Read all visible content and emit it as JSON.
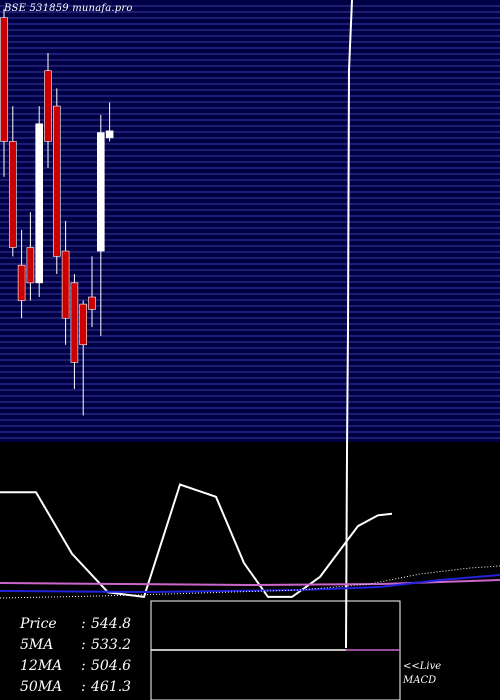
{
  "header": {
    "title": "BSE 531859 munafa.pro"
  },
  "stats": [
    {
      "label": "Price",
      "value": "544.8"
    },
    {
      "label": "5MA",
      "value": "533.2"
    },
    {
      "label": "12MA",
      "value": "504.6"
    },
    {
      "label": "50MA",
      "value": "461.3"
    }
  ],
  "footer": {
    "live_label": "<<Live",
    "macd_label": "MACD"
  },
  "colors": {
    "background": "#000000",
    "price_panel_bg": "#000044",
    "gridline": "#3a3aa0",
    "bull": "#ffffff",
    "bear": "#cc0000",
    "line": "#ffffff",
    "ma_magenta": "#cc66cc",
    "ma_blue": "#2222dd"
  },
  "chart_data": [
    {
      "type": "candlestick",
      "title": "BSE 531859 munafa.pro",
      "ylim": [
        400,
        650
      ],
      "grid": true,
      "candles": [
        {
          "open": 640,
          "high": 645,
          "low": 550,
          "close": 570
        },
        {
          "open": 570,
          "high": 590,
          "low": 505,
          "close": 510
        },
        {
          "open": 500,
          "high": 520,
          "low": 470,
          "close": 480
        },
        {
          "open": 510,
          "high": 530,
          "low": 480,
          "close": 490
        },
        {
          "open": 490,
          "high": 590,
          "low": 482,
          "close": 580
        },
        {
          "open": 610,
          "high": 620,
          "low": 555,
          "close": 570
        },
        {
          "open": 590,
          "high": 600,
          "low": 495,
          "close": 505
        },
        {
          "open": 508,
          "high": 525,
          "low": 455,
          "close": 470
        },
        {
          "open": 490,
          "high": 495,
          "low": 430,
          "close": 445
        },
        {
          "open": 478,
          "high": 480,
          "low": 415,
          "close": 455
        },
        {
          "open": 482,
          "high": 505,
          "low": 465,
          "close": 475
        },
        {
          "open": 508,
          "high": 585,
          "low": 460,
          "close": 575
        },
        {
          "open": 572,
          "high": 592,
          "low": 570,
          "close": 576
        }
      ]
    },
    {
      "type": "line",
      "series": [
        {
          "values": [
            0.7,
            0.7,
            0.3,
            0.05,
            0.02,
            0.75,
            0.67,
            0.24,
            0.02,
            0.02,
            0.15,
            0.48,
            0.55,
            0.56
          ]
        }
      ]
    },
    {
      "type": "line",
      "label": "MACD",
      "series": [
        {
          "values": [
            0.55,
            0.55,
            0.55,
            0.5,
            0.5,
            0.5,
            0.5
          ]
        }
      ]
    }
  ]
}
